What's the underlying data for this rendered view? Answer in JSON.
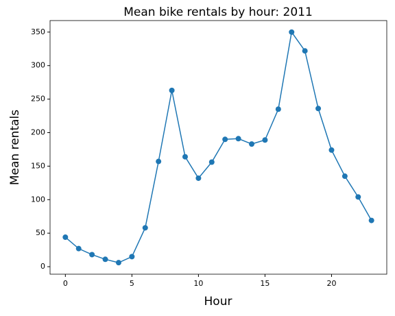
{
  "chart_data": {
    "type": "line",
    "title": "Mean bike rentals by hour: 2011",
    "x_label": "Hour",
    "y_label": "Mean rentals",
    "x": [
      0,
      1,
      2,
      3,
      4,
      5,
      6,
      7,
      8,
      9,
      10,
      11,
      12,
      13,
      14,
      15,
      16,
      17,
      18,
      19,
      20,
      21,
      22,
      23
    ],
    "series": [
      {
        "color": "#1f77b4",
        "values": [
          44,
          27,
          18,
          11,
          6,
          15,
          58,
          157,
          263,
          164,
          132,
          156,
          190,
          191,
          183,
          189,
          235,
          350,
          322,
          236,
          174,
          135,
          104,
          69
        ]
      }
    ],
    "xlim": [
      -1.15,
      24.15
    ],
    "xticks": [
      0,
      5,
      10,
      15,
      20
    ],
    "ylim": [
      -11.2,
      367.2
    ],
    "yticks": [
      0,
      50,
      100,
      150,
      200,
      250,
      300,
      350
    ],
    "grid": false,
    "markers": true
  }
}
